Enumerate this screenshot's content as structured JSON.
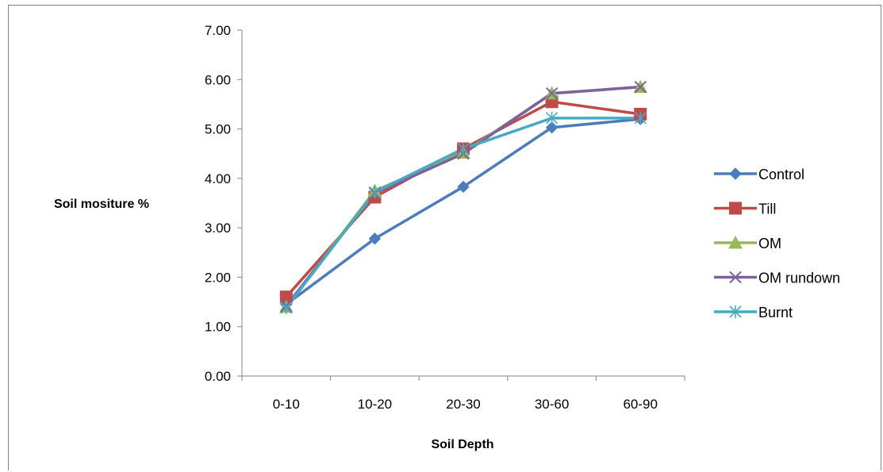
{
  "chart_data": {
    "type": "line",
    "title": "",
    "xlabel": "Soil Depth",
    "ylabel": "Soil mositure %",
    "categories": [
      "0-10",
      "10-20",
      "20-30",
      "30-60",
      "60-90"
    ],
    "ylim": [
      0,
      7
    ],
    "yticks": [
      "0.00",
      "1.00",
      "2.00",
      "3.00",
      "4.00",
      "5.00",
      "6.00",
      "7.00"
    ],
    "grid": false,
    "legend_position": "right",
    "series": [
      {
        "name": "Control",
        "color": "#4a7ebb",
        "marker": "diamond",
        "values": [
          1.45,
          2.78,
          3.83,
          5.03,
          5.2
        ]
      },
      {
        "name": "Till",
        "color": "#be4b48",
        "marker": "square",
        "values": [
          1.6,
          3.62,
          4.6,
          5.55,
          5.3
        ]
      },
      {
        "name": "OM",
        "color": "#98b954",
        "marker": "triangle",
        "values": [
          1.4,
          3.75,
          4.52,
          5.72,
          5.85
        ]
      },
      {
        "name": "OM rundown",
        "color": "#7d60a0",
        "marker": "x",
        "values": [
          1.42,
          3.7,
          4.5,
          5.72,
          5.85
        ]
      },
      {
        "name": "Burnt",
        "color": "#46aac5",
        "marker": "asterisk",
        "values": [
          1.38,
          3.72,
          4.6,
          5.22,
          5.22
        ]
      }
    ]
  }
}
